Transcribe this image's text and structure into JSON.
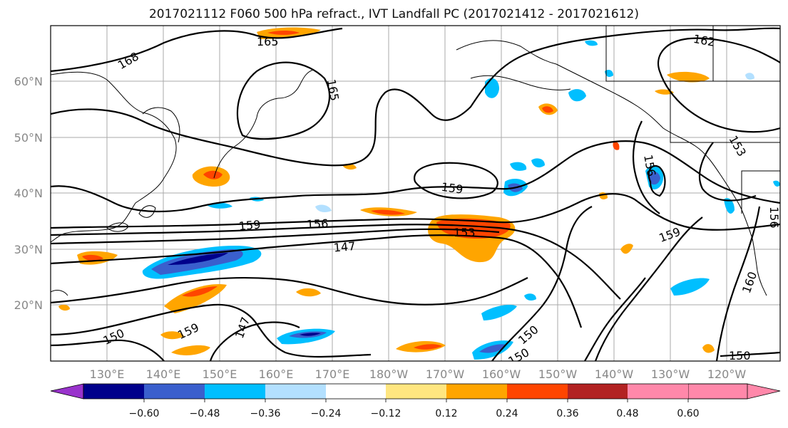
{
  "title": "2017021112 F060 500 hPa refract., IVT Landfall PC (2017021412 - 2017021612)",
  "lat_labels": [
    "60°N",
    "50°N",
    "40°N",
    "30°N",
    "20°N"
  ],
  "lon_labels": [
    "130°E",
    "140°E",
    "150°E",
    "160°E",
    "170°E",
    "180°W",
    "170°W",
    "160°W",
    "150°W",
    "140°W",
    "130°W",
    "120°W"
  ],
  "contour_labels": [
    "168",
    "165",
    "165",
    "162",
    "159",
    "159",
    "156",
    "153",
    "147",
    "159",
    "156",
    "153",
    "150",
    "147",
    "150",
    "150",
    "150",
    "160",
    "156",
    "159"
  ],
  "colorbar": {
    "ticks": [
      "−0.60",
      "−0.48",
      "−0.36",
      "−0.24",
      "−0.12",
      "0.12",
      "0.24",
      "0.36",
      "0.48",
      "0.60"
    ],
    "colors": [
      "#9933cc",
      "#00008b",
      "#3a5fcd",
      "#00bfff",
      "#b3e0ff",
      "#ffffff",
      "#ffe680",
      "#ffa500",
      "#ff4500",
      "#b22222",
      "#ff88aa"
    ]
  }
}
